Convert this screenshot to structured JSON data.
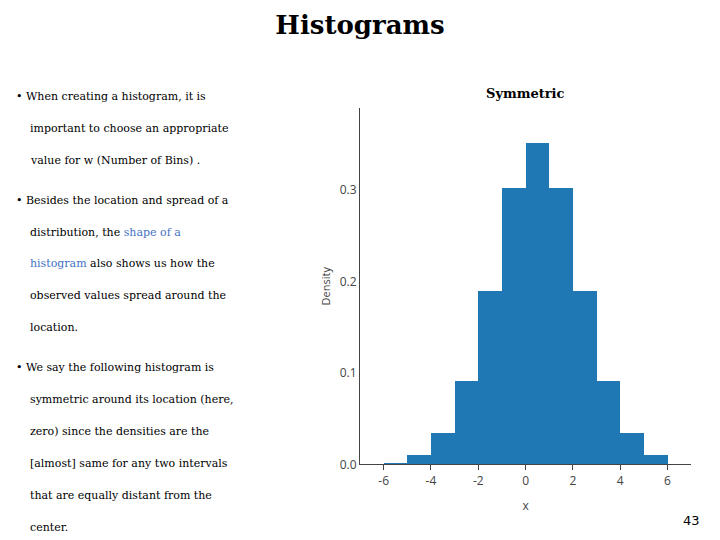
{
  "chart_data": {
    "type": "histogram",
    "title": "Histograms",
    "subtitle": "Symmetric",
    "x_label": "x",
    "y_label": "Density",
    "bins": [
      -6,
      -5,
      -4,
      -3,
      -2,
      -1,
      0,
      1,
      2,
      3,
      4,
      5,
      6
    ],
    "values": [
      0.001,
      0.01,
      0.034,
      0.091,
      0.19,
      0.303,
      0.352,
      0.303,
      0.19,
      0.091,
      0.034,
      0.01
    ],
    "xlim": [
      -7,
      7
    ],
    "xticks": [
      -6,
      -4,
      -2,
      0,
      2,
      4,
      6
    ],
    "ylim": [
      0,
      0.39
    ],
    "yticks": [
      {
        "value": 0.0,
        "label": "0.0"
      },
      0.1,
      0.2,
      0.3
    ],
    "grid": false,
    "annotations": [
      [
        [
          "• When creating a histogram, it is"
        ],
        [
          "important to choose an appropriate"
        ],
        [
          "value for w (Number of Bins) ."
        ]
      ],
      [
        [
          "• Besides the location and spread of a"
        ],
        [
          "distribution, the ",
          {
            "text": "shape of a",
            "color": "#4472c4"
          }
        ],
        [
          {
            "text": "histogram",
            "color": "#4472c4"
          },
          " also shows us how the"
        ],
        [
          "observed values spread around the"
        ],
        [
          "location."
        ]
      ],
      [
        [
          "• We say the following histogram is"
        ],
        [
          "symmetric around its location (here,"
        ],
        [
          "zero) since the densities are the"
        ],
        [
          "[almost] same for any two intervals"
        ],
        [
          "that are equally distant from the"
        ],
        [
          "center."
        ]
      ]
    ],
    "footer": "43"
  }
}
